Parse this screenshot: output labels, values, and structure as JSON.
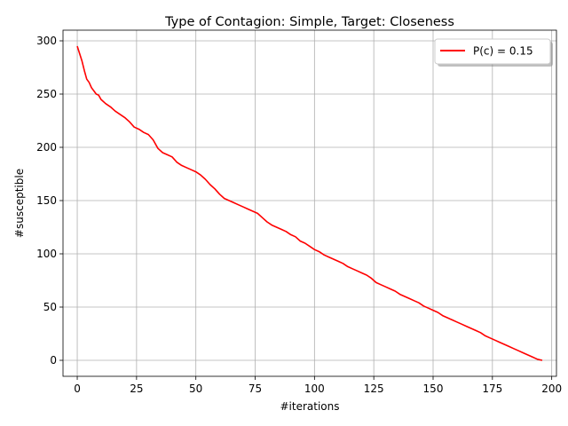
{
  "chart_data": {
    "type": "line",
    "title": "Type of Contagion: Simple, Target: Closeness",
    "xlabel": "#iterations",
    "ylabel": "#susceptible",
    "xlim": [
      -6,
      202
    ],
    "ylim": [
      -15,
      310
    ],
    "xticks": [
      0,
      25,
      50,
      75,
      100,
      125,
      150,
      175,
      200
    ],
    "yticks": [
      0,
      50,
      100,
      150,
      200,
      250,
      300
    ],
    "grid": true,
    "legend_position": "top-right",
    "series": [
      {
        "name": "P(c) = 0.15",
        "color": "#ff0000",
        "x": [
          0,
          1,
          2,
          3,
          4,
          5,
          6,
          7,
          8,
          9,
          10,
          12,
          14,
          16,
          18,
          20,
          22,
          24,
          26,
          28,
          30,
          32,
          34,
          36,
          38,
          40,
          42,
          44,
          46,
          48,
          50,
          52,
          54,
          56,
          58,
          60,
          62,
          64,
          66,
          68,
          70,
          72,
          74,
          76,
          78,
          80,
          82,
          84,
          86,
          88,
          90,
          92,
          94,
          96,
          98,
          100,
          102,
          104,
          106,
          108,
          110,
          112,
          114,
          116,
          118,
          120,
          122,
          124,
          126,
          128,
          130,
          132,
          134,
          136,
          138,
          140,
          142,
          144,
          146,
          148,
          150,
          152,
          154,
          156,
          158,
          160,
          162,
          164,
          166,
          168,
          170,
          172,
          174,
          176,
          178,
          180,
          182,
          184,
          186,
          188,
          190,
          192,
          194,
          196
        ],
        "y": [
          295,
          288,
          281,
          272,
          264,
          261,
          256,
          253,
          250,
          249,
          245,
          241,
          238,
          234,
          231,
          228,
          224,
          219,
          217,
          214,
          212,
          207,
          199,
          195,
          193,
          191,
          186,
          183,
          181,
          179,
          177,
          174,
          170,
          165,
          161,
          156,
          152,
          150,
          148,
          146,
          144,
          142,
          140,
          138,
          134,
          130,
          127,
          125,
          123,
          121,
          118,
          116,
          112,
          110,
          107,
          104,
          102,
          99,
          97,
          95,
          93,
          91,
          88,
          86,
          84,
          82,
          80,
          77,
          73,
          71,
          69,
          67,
          65,
          62,
          60,
          58,
          56,
          54,
          51,
          49,
          47,
          45,
          42,
          40,
          38,
          36,
          34,
          32,
          30,
          28,
          26,
          23,
          21,
          19,
          17,
          15,
          13,
          11,
          9,
          7,
          5,
          3,
          1,
          0
        ]
      }
    ]
  }
}
